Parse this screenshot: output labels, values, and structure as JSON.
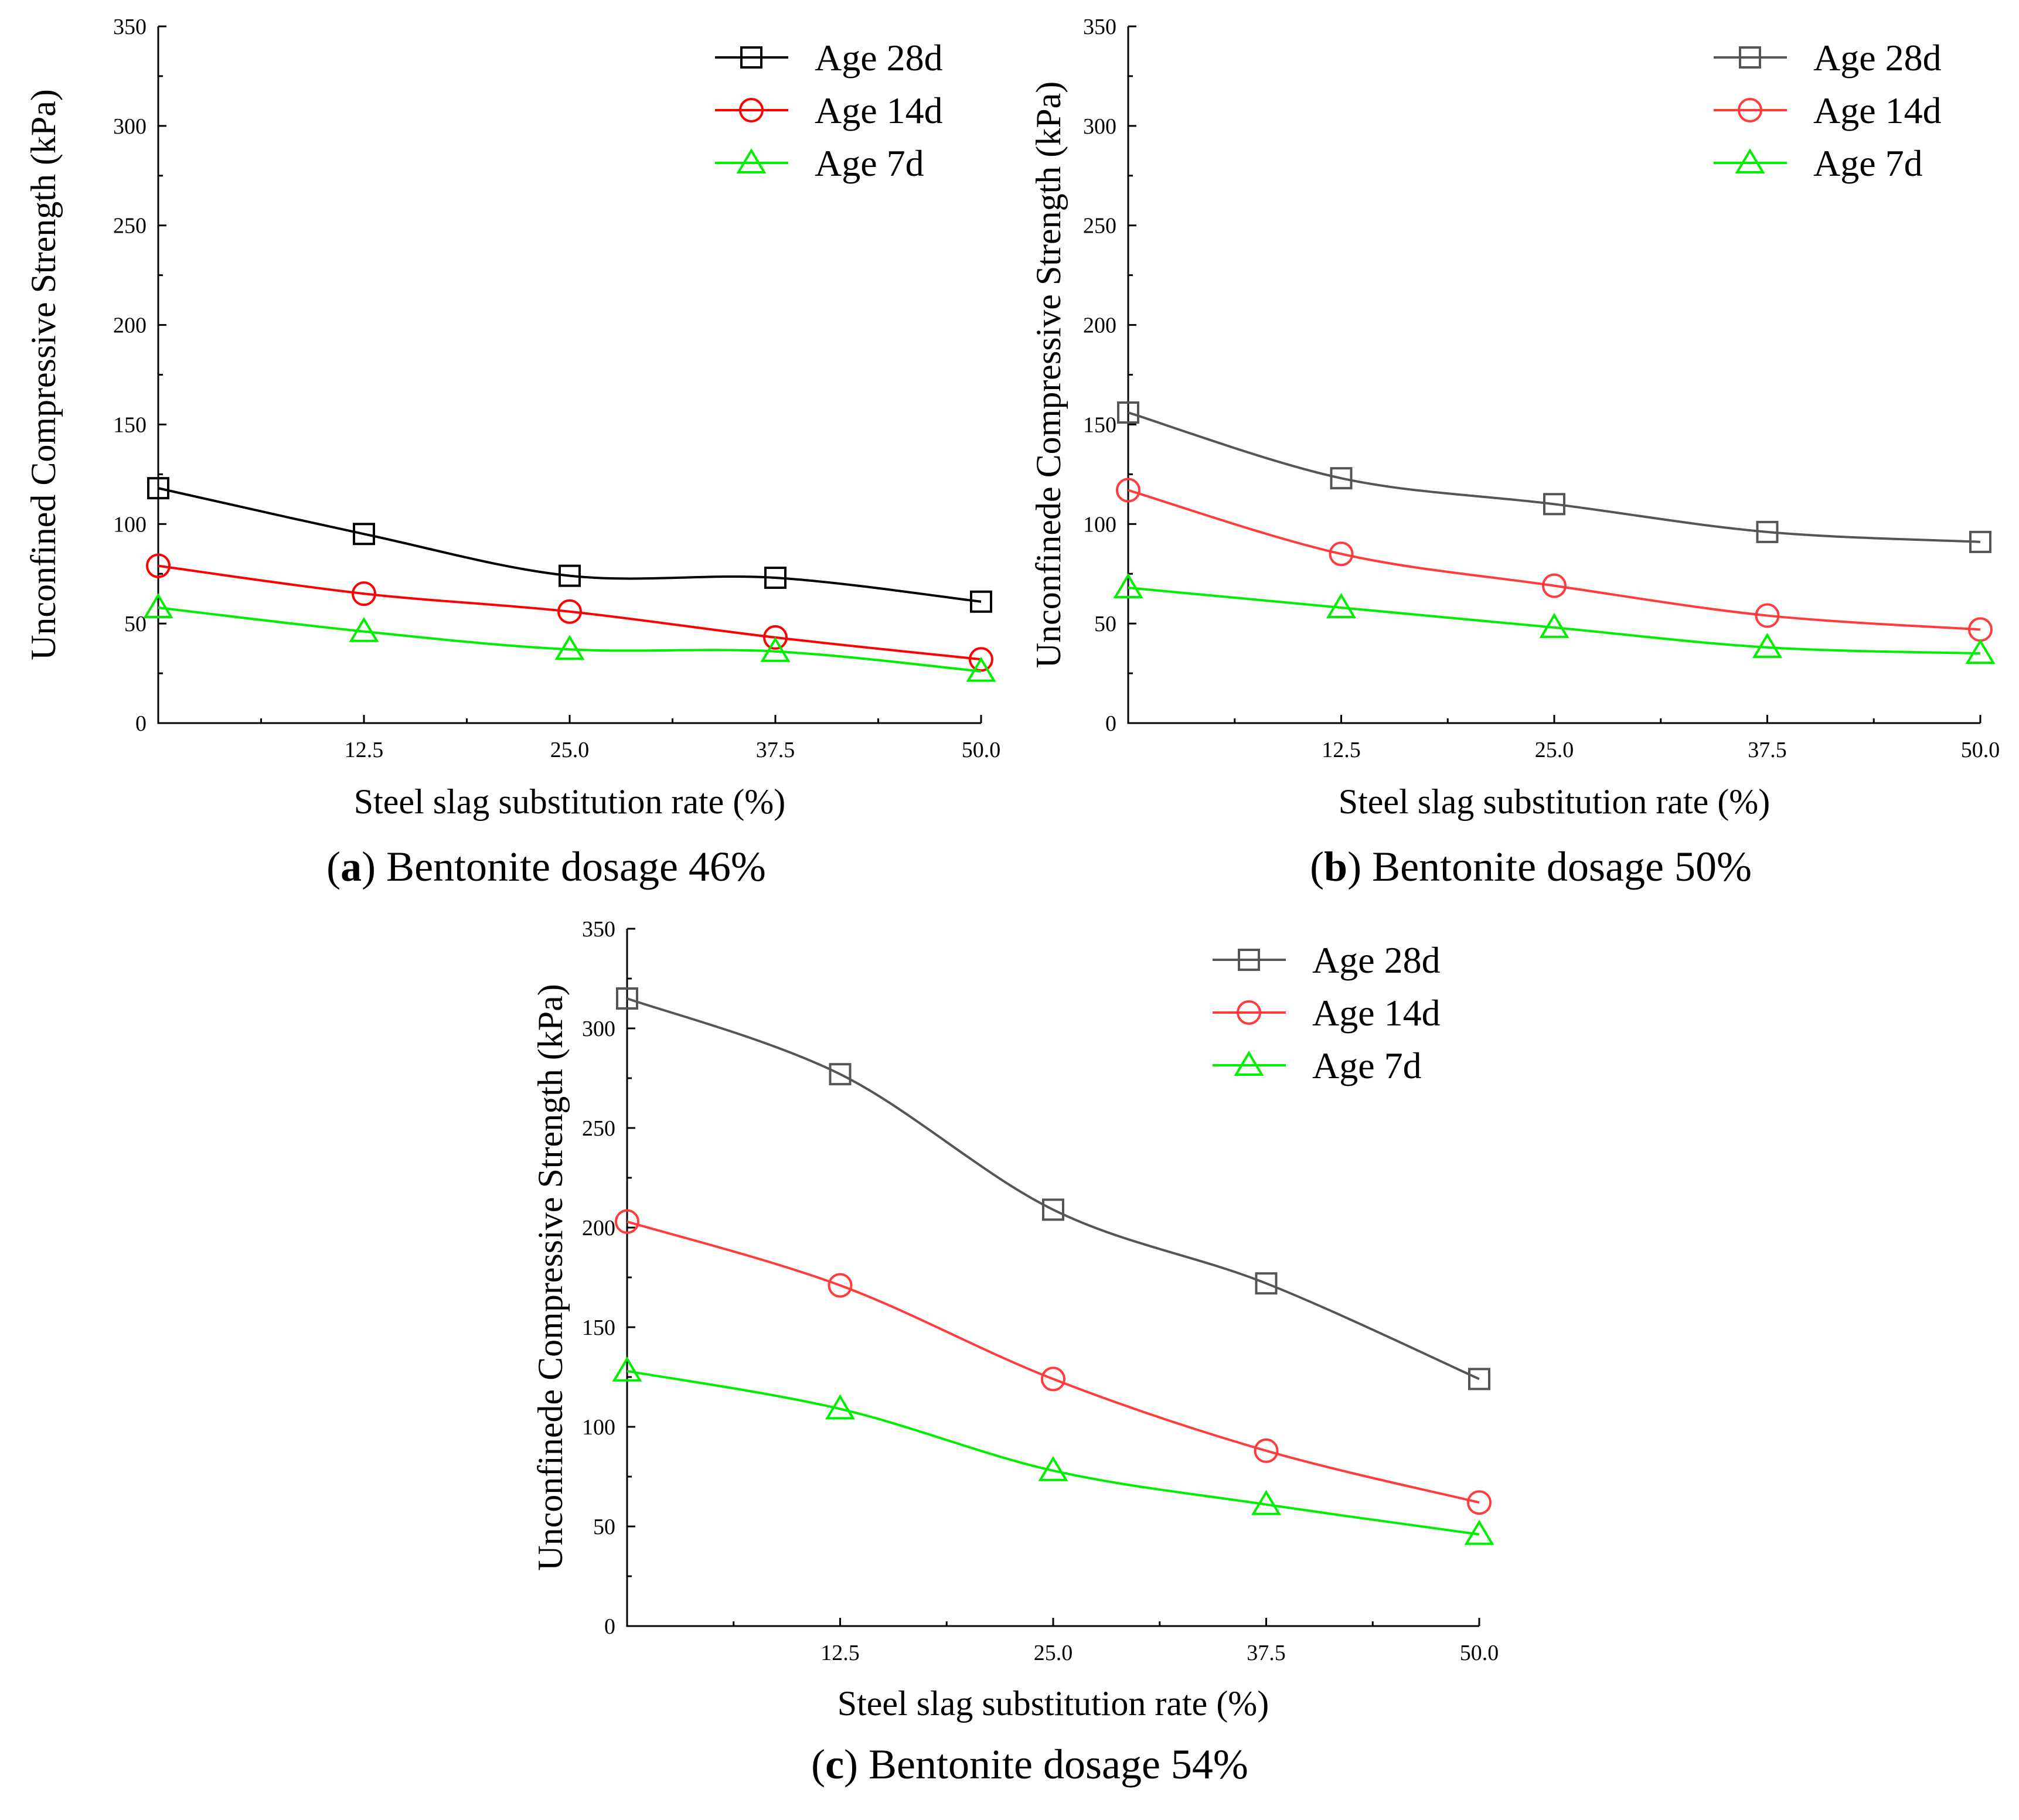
{
  "chart_data": [
    {
      "type": "line",
      "caption_letter": "a",
      "caption_text": "Bentonite dosage 46%",
      "xlabel": "Steel slag substitution rate (%)",
      "ylabel": "Unconfined Compressive Strength (kPa)",
      "x": [
        0,
        12.5,
        25.0,
        37.5,
        50.0
      ],
      "x_tick_labels": [
        "12.5",
        "25.0",
        "37.5",
        "50.0"
      ],
      "xlim": [
        0,
        50
      ],
      "ylim": [
        0,
        350
      ],
      "y_ticks": [
        0,
        50,
        100,
        150,
        200,
        250,
        300,
        350
      ],
      "legend_position": "top-right",
      "series": [
        {
          "name": "Age 28d",
          "marker": "square",
          "color": "#000000",
          "values": [
            118,
            95,
            74,
            73,
            61
          ]
        },
        {
          "name": "Age 14d",
          "marker": "circle",
          "color": "#ff0000",
          "values": [
            79,
            65,
            56,
            43,
            32
          ]
        },
        {
          "name": "Age 7d",
          "marker": "triangle",
          "color": "#00ee00",
          "values": [
            58,
            46,
            37,
            36,
            26
          ]
        }
      ]
    },
    {
      "type": "line",
      "caption_letter": "b",
      "caption_text": "Bentonite dosage 50%",
      "xlabel": "Steel slag substitution rate (%)",
      "ylabel": "Unconfinede Compressive Strength (kPa)",
      "x": [
        0,
        12.5,
        25.0,
        37.5,
        50.0
      ],
      "x_tick_labels": [
        "12.5",
        "25.0",
        "37.5",
        "50.0"
      ],
      "xlim": [
        0,
        50
      ],
      "ylim": [
        0,
        350
      ],
      "y_ticks": [
        0,
        50,
        100,
        150,
        200,
        250,
        300,
        350
      ],
      "legend_position": "top-right",
      "series": [
        {
          "name": "Age 28d",
          "marker": "square",
          "color": "#555555",
          "values": [
            156,
            123,
            110,
            96,
            91
          ]
        },
        {
          "name": "Age 14d",
          "marker": "circle",
          "color": "#ff3b3b",
          "values": [
            117,
            85,
            69,
            54,
            47
          ]
        },
        {
          "name": "Age 7d",
          "marker": "triangle",
          "color": "#00ee00",
          "values": [
            68,
            58,
            48,
            38,
            35
          ]
        }
      ]
    },
    {
      "type": "line",
      "caption_letter": "c",
      "caption_text": "Bentonite dosage 54%",
      "xlabel": "Steel slag substitution rate (%)",
      "ylabel": "Unconfinede Compressive Strength (kPa)",
      "x": [
        0,
        12.5,
        25.0,
        37.5,
        50.0
      ],
      "x_tick_labels": [
        "12.5",
        "25.0",
        "37.5",
        "50.0"
      ],
      "xlim": [
        0,
        50
      ],
      "ylim": [
        0,
        350
      ],
      "y_ticks": [
        0,
        50,
        100,
        150,
        200,
        250,
        300,
        350
      ],
      "legend_position": "top-right",
      "series": [
        {
          "name": "Age 28d",
          "marker": "square",
          "color": "#555555",
          "values": [
            315,
            277,
            209,
            172,
            124
          ]
        },
        {
          "name": "Age 14d",
          "marker": "circle",
          "color": "#ff3b3b",
          "values": [
            203,
            171,
            124,
            88,
            62
          ]
        },
        {
          "name": "Age 7d",
          "marker": "triangle",
          "color": "#00ee00",
          "values": [
            128,
            109,
            78,
            61,
            46
          ]
        }
      ]
    }
  ]
}
